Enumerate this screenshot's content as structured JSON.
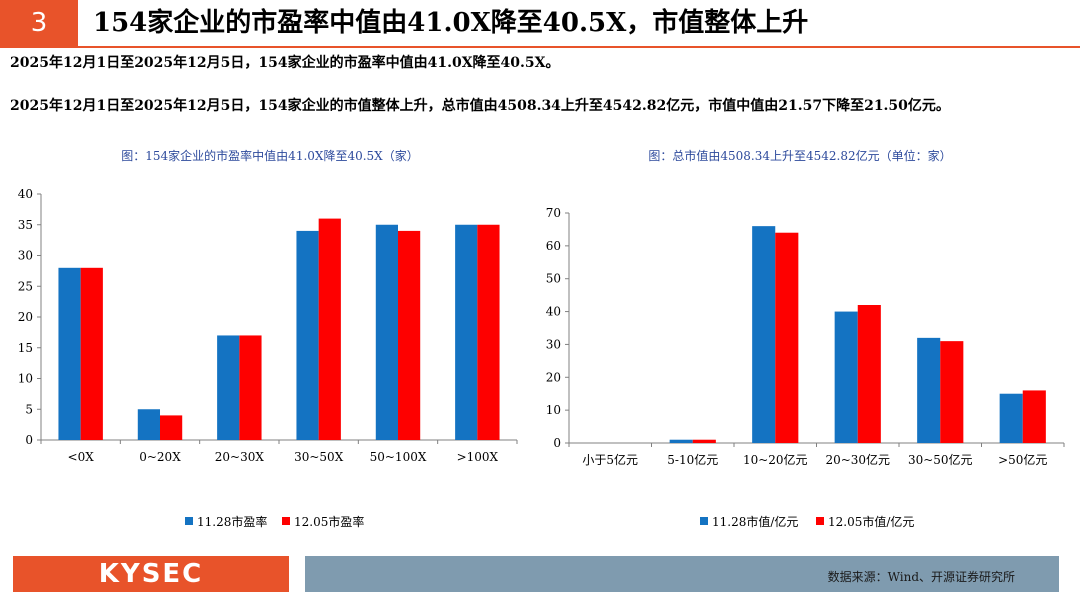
{
  "slide": {
    "number": "3",
    "title": "154家企业的市盈率中值由41.0X降至40.5X，市值整体上升"
  },
  "paragraphs": [
    "2025年12月1日至2025年12月5日，154家企业的市盈率中值由41.0X降至40.5X。",
    "2025年12月1日至2025年12月5日，154家企业的市值整体上升，总市值由4508.34上升至4542.82亿元，市值中值由21.57下降至21.50亿元。"
  ],
  "footer": {
    "logo": "KYSEC",
    "source": "数据来源：Wind、开源证券研究所"
  },
  "colors": {
    "accent": "#e8532a",
    "series_blue": "#1473c2",
    "series_red": "#fe0000",
    "footer_bar": "#7f9baf"
  },
  "chart_data": [
    {
      "type": "bar",
      "title": "图：154家企业的市盈率中值由41.0X降至40.5X（家）",
      "categories": [
        "<0X",
        "0~20X",
        "20~30X",
        "30~50X",
        "50~100X",
        ">100X"
      ],
      "series": [
        {
          "name": "11.28市盈率",
          "values": [
            28,
            5,
            17,
            34,
            35,
            35
          ]
        },
        {
          "name": "12.05市盈率",
          "values": [
            28,
            4,
            17,
            36,
            34,
            35
          ]
        }
      ],
      "ylim": [
        0,
        40
      ],
      "yticks": [
        0,
        5,
        10,
        15,
        20,
        25,
        30,
        35,
        40
      ],
      "legend": "bottom"
    },
    {
      "type": "bar",
      "title": "图：总市值由4508.34上升至4542.82亿元（单位：家）",
      "categories": [
        "小于5亿元",
        "5-10亿元",
        "10~20亿元",
        "20~30亿元",
        "30~50亿元",
        ">50亿元"
      ],
      "series": [
        {
          "name": "11.28市值/亿元",
          "values": [
            0,
            1,
            66,
            40,
            32,
            15
          ]
        },
        {
          "name": "12.05市值/亿元",
          "values": [
            0,
            1,
            64,
            42,
            31,
            16
          ]
        }
      ],
      "ylim": [
        0,
        70
      ],
      "yticks": [
        0,
        10,
        20,
        30,
        40,
        50,
        60,
        70
      ],
      "legend": "bottom"
    }
  ]
}
